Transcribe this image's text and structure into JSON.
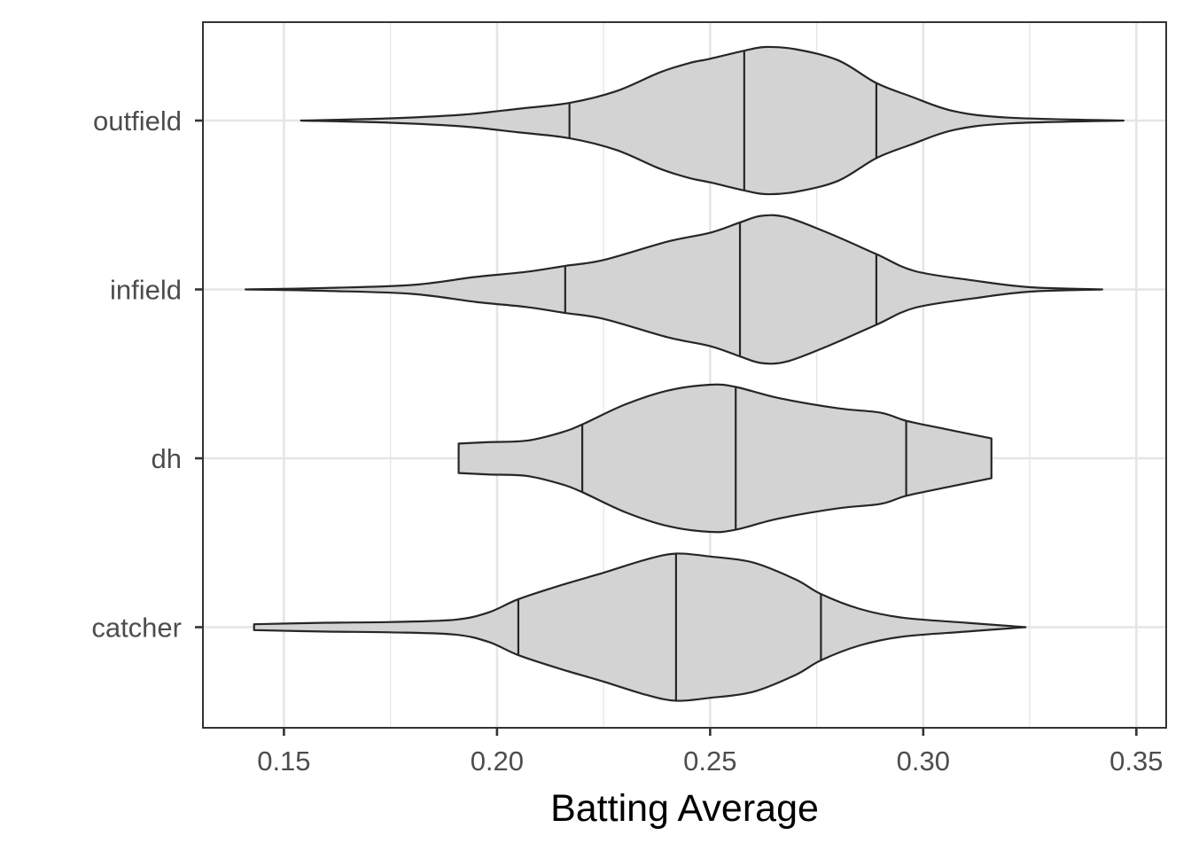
{
  "chart_data": {
    "type": "violin",
    "orientation": "horizontal",
    "xlabel": "Batting Average",
    "ylabel": "",
    "xlim": [
      0.131,
      0.357
    ],
    "xticks": [
      0.15,
      0.2,
      0.25,
      0.3,
      0.35
    ],
    "xtick_labels": [
      "0.15",
      "0.20",
      "0.25",
      "0.30",
      "0.35"
    ],
    "categories": [
      "outfield",
      "infield",
      "dh",
      "catcher"
    ],
    "grid": true,
    "legend": "none",
    "colors": {
      "fill": "#d3d3d3",
      "stroke": "#262626",
      "grid": "#e5e5e5",
      "panel_border": "#333333",
      "tick_label": "#4d4d4d"
    },
    "violins": [
      {
        "category": "outfield",
        "quantiles": [
          0.217,
          0.258,
          0.289
        ],
        "density": [
          [
            0.154,
            0.0
          ],
          [
            0.175,
            0.03
          ],
          [
            0.192,
            0.08
          ],
          [
            0.205,
            0.16
          ],
          [
            0.217,
            0.24
          ],
          [
            0.228,
            0.4
          ],
          [
            0.238,
            0.65
          ],
          [
            0.245,
            0.78
          ],
          [
            0.25,
            0.84
          ],
          [
            0.258,
            0.95
          ],
          [
            0.263,
            1.0
          ],
          [
            0.27,
            0.97
          ],
          [
            0.28,
            0.82
          ],
          [
            0.289,
            0.51
          ],
          [
            0.297,
            0.33
          ],
          [
            0.307,
            0.13
          ],
          [
            0.32,
            0.04
          ],
          [
            0.347,
            0.0
          ]
        ]
      },
      {
        "category": "infield",
        "quantiles": [
          0.216,
          0.257,
          0.289
        ],
        "density": [
          [
            0.141,
            0.0
          ],
          [
            0.16,
            0.02
          ],
          [
            0.18,
            0.06
          ],
          [
            0.195,
            0.17
          ],
          [
            0.207,
            0.24
          ],
          [
            0.216,
            0.32
          ],
          [
            0.225,
            0.4
          ],
          [
            0.24,
            0.65
          ],
          [
            0.25,
            0.77
          ],
          [
            0.257,
            0.91
          ],
          [
            0.262,
            1.0
          ],
          [
            0.268,
            0.98
          ],
          [
            0.278,
            0.76
          ],
          [
            0.289,
            0.48
          ],
          [
            0.298,
            0.25
          ],
          [
            0.312,
            0.12
          ],
          [
            0.325,
            0.03
          ],
          [
            0.342,
            0.0
          ]
        ]
      },
      {
        "category": "dh",
        "quantiles": [
          0.22,
          0.256,
          0.296
        ],
        "density": [
          [
            0.191,
            0.2
          ],
          [
            0.198,
            0.22
          ],
          [
            0.207,
            0.24
          ],
          [
            0.215,
            0.35
          ],
          [
            0.22,
            0.46
          ],
          [
            0.23,
            0.73
          ],
          [
            0.24,
            0.92
          ],
          [
            0.25,
            1.0
          ],
          [
            0.256,
            0.97
          ],
          [
            0.266,
            0.82
          ],
          [
            0.28,
            0.68
          ],
          [
            0.29,
            0.62
          ],
          [
            0.296,
            0.51
          ],
          [
            0.305,
            0.4
          ],
          [
            0.316,
            0.27
          ]
        ]
      },
      {
        "category": "catcher",
        "quantiles": [
          0.205,
          0.242,
          0.276
        ],
        "density": [
          [
            0.143,
            0.04
          ],
          [
            0.16,
            0.06
          ],
          [
            0.175,
            0.07
          ],
          [
            0.19,
            0.1
          ],
          [
            0.198,
            0.2
          ],
          [
            0.205,
            0.38
          ],
          [
            0.215,
            0.57
          ],
          [
            0.225,
            0.74
          ],
          [
            0.235,
            0.92
          ],
          [
            0.242,
            1.0
          ],
          [
            0.25,
            0.96
          ],
          [
            0.26,
            0.88
          ],
          [
            0.27,
            0.65
          ],
          [
            0.276,
            0.45
          ],
          [
            0.285,
            0.25
          ],
          [
            0.295,
            0.13
          ],
          [
            0.31,
            0.06
          ],
          [
            0.324,
            0.0
          ]
        ]
      }
    ]
  }
}
